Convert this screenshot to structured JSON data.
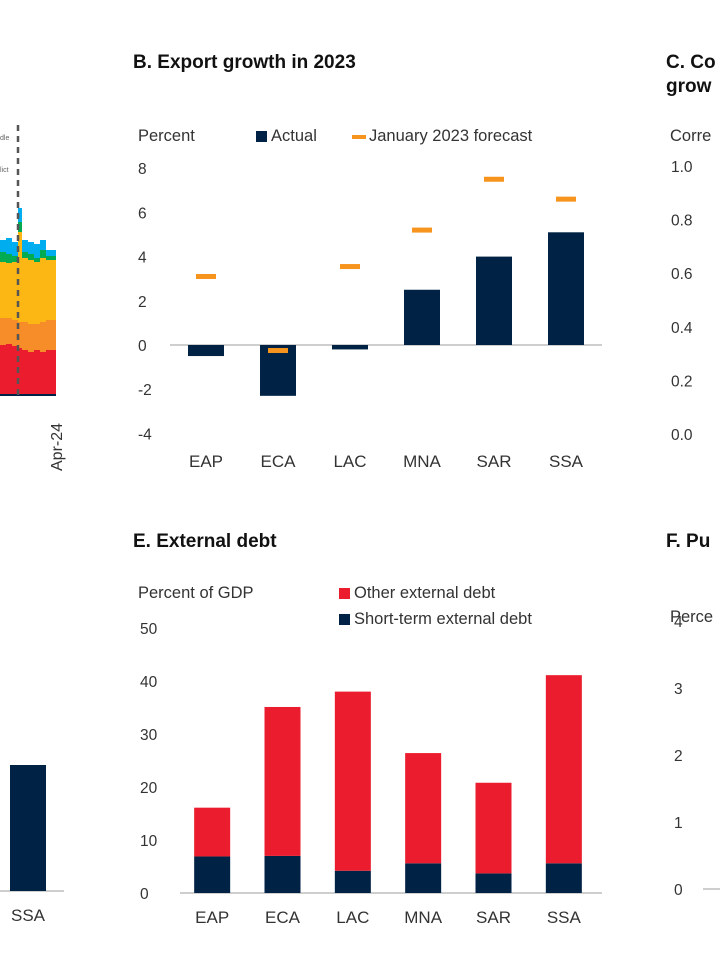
{
  "colors": {
    "navy": "#002244",
    "orange": "#F7941D",
    "red": "#EB1C2D",
    "yellow": "#FDB714",
    "lightorange": "#F78D28",
    "green": "#00AB51",
    "blue": "#00AEEF",
    "axis": "#b0b0b0"
  },
  "chart_data": [
    {
      "panel": "A",
      "type": "area",
      "title": "",
      "partial": true,
      "xtick_labels": [
        "Apr-24"
      ],
      "annotations": [
        "…dle",
        "…lict"
      ],
      "series_colors_bottom_to_top": [
        "red",
        "lightorange",
        "yellow",
        "green",
        "blue"
      ],
      "note": "Cropped stacked area chart; only right edge visible with dashed vertical marker line"
    },
    {
      "panel": "B",
      "type": "bar",
      "title": "B. Export growth in 2023",
      "ylabel": "Percent",
      "ylim": [
        -4,
        8
      ],
      "yticks": [
        "8",
        "6",
        "4",
        "2",
        "0",
        "-2",
        "-4"
      ],
      "categories": [
        "EAP",
        "ECA",
        "LAC",
        "MNA",
        "SAR",
        "SSA"
      ],
      "series": [
        {
          "name": "Actual",
          "style": "bar",
          "color": "#002244",
          "values": [
            -0.5,
            -2.3,
            -0.2,
            2.5,
            4.0,
            5.1
          ]
        },
        {
          "name": "January 2023 forecast",
          "style": "dash",
          "color": "#F7941D",
          "values": [
            3.1,
            -0.25,
            3.55,
            5.2,
            7.5,
            6.6
          ]
        }
      ],
      "legend": "top"
    },
    {
      "panel": "C",
      "type": "bar",
      "title": "C. Co… grow…",
      "title_lines": [
        "C. Co",
        "grow"
      ],
      "ylabel": "Corre",
      "ylim": [
        0.0,
        1.0
      ],
      "yticks": [
        "1.0",
        "0.8",
        "0.6",
        "0.4",
        "0.2",
        "0.0"
      ],
      "partial": true
    },
    {
      "panel": "D",
      "type": "bar",
      "partial": true,
      "categories": [
        "SSA"
      ],
      "note": "Cropped; only last bar visible"
    },
    {
      "panel": "E",
      "type": "bar",
      "stacked": true,
      "title": "E. External debt",
      "ylabel": "Percent of GDP",
      "ylim": [
        0,
        50
      ],
      "yticks": [
        "50",
        "40",
        "30",
        "20",
        "10",
        "0"
      ],
      "categories": [
        "EAP",
        "ECA",
        "LAC",
        "MNA",
        "SAR",
        "SSA"
      ],
      "series": [
        {
          "name": "Short-term external debt",
          "color": "#002244",
          "values": [
            6.9,
            7.0,
            4.2,
            5.6,
            3.7,
            5.6
          ]
        },
        {
          "name": "Other external debt",
          "color": "#EB1C2D",
          "values": [
            9.2,
            28.1,
            33.8,
            20.8,
            17.1,
            35.5
          ]
        }
      ],
      "totals": [
        16.1,
        35.1,
        38.0,
        26.4,
        20.8,
        41.1
      ],
      "legend": "top-right"
    },
    {
      "panel": "F",
      "type": "bar",
      "title": "F. Pu…",
      "title_visible": "F. Pu",
      "ylabel": "Perce",
      "ylim": [
        0,
        4
      ],
      "yticks": [
        "4",
        "3",
        "2",
        "1",
        "0"
      ],
      "partial": true
    }
  ],
  "labels": {
    "b_title": "B. Export growth in 2023",
    "b_unit": "Percent",
    "b_leg_actual": "Actual",
    "b_leg_forecast": "January 2023 forecast",
    "c_title_1": "C. Co",
    "c_title_2": "grow",
    "c_unit": "Corre",
    "e_title": "E. External debt",
    "e_unit": "Percent of GDP",
    "e_leg_other": "Other external debt",
    "e_leg_short": "Short-term external debt",
    "f_title": "F. Pu",
    "f_unit": "Perce",
    "a_xtick": "Apr-24",
    "a_ann_1": "dle",
    "a_ann_2": "lict",
    "d_cat": "SSA"
  }
}
